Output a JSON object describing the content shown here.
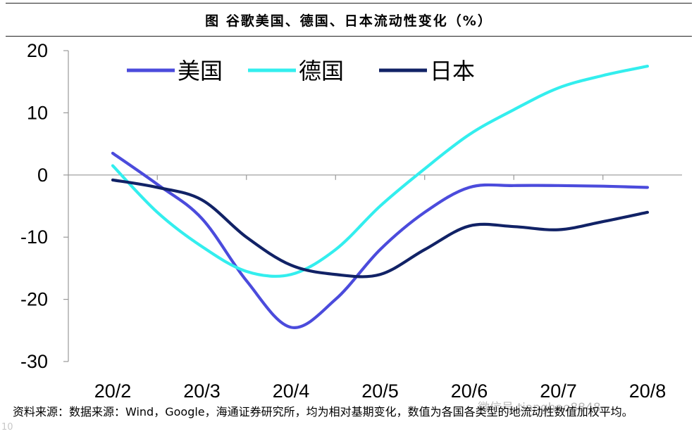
{
  "header": {
    "title": "图 谷歌美国、德国、日本流动性变化（%）"
  },
  "footer": {
    "source": "资料来源：数据来源：Wind，Google，海通证券研究所，均为相对基期变化，数值为各国各类型的地流动性数值加权平均。"
  },
  "watermark": {
    "text": "微信号 tianghao8848",
    "left": "10"
  },
  "chart_data": {
    "type": "line",
    "categories": [
      "20/2",
      "20/3",
      "20/4",
      "20/5",
      "20/6",
      "20/7",
      "20/8"
    ],
    "ylim": [
      -30,
      20
    ],
    "yticks": [
      -30,
      -20,
      -10,
      0,
      10,
      20
    ],
    "legend_position": "top-left",
    "grid": false,
    "series": [
      {
        "name": "美国",
        "color": "#4b4bdc",
        "x": [
          0,
          0.5,
          1,
          1.5,
          2,
          2.5,
          3,
          3.5,
          4,
          4.5,
          5,
          5.5,
          6
        ],
        "y": [
          3.5,
          -1.5,
          -7,
          -17,
          -24.5,
          -20,
          -12,
          -6,
          -2,
          -1.7,
          -1.7,
          -1.8,
          -2
        ]
      },
      {
        "name": "德国",
        "color": "#33eeee",
        "x": [
          0,
          0.5,
          1,
          1.5,
          2,
          2.5,
          3,
          3.5,
          4,
          4.5,
          5,
          5.5,
          6
        ],
        "y": [
          1.5,
          -6,
          -11.5,
          -15.5,
          -16,
          -12,
          -5,
          1,
          6.5,
          10.5,
          14,
          16,
          17.5
        ]
      },
      {
        "name": "日本",
        "color": "#112266",
        "x": [
          0,
          0.5,
          1,
          1.5,
          2,
          2.5,
          3,
          3.5,
          4,
          4.5,
          5,
          5.5,
          6
        ],
        "y": [
          -0.8,
          -2,
          -4,
          -10,
          -14.5,
          -16,
          -16,
          -12,
          -8.2,
          -8.3,
          -8.8,
          -7.5,
          -6
        ]
      }
    ]
  }
}
